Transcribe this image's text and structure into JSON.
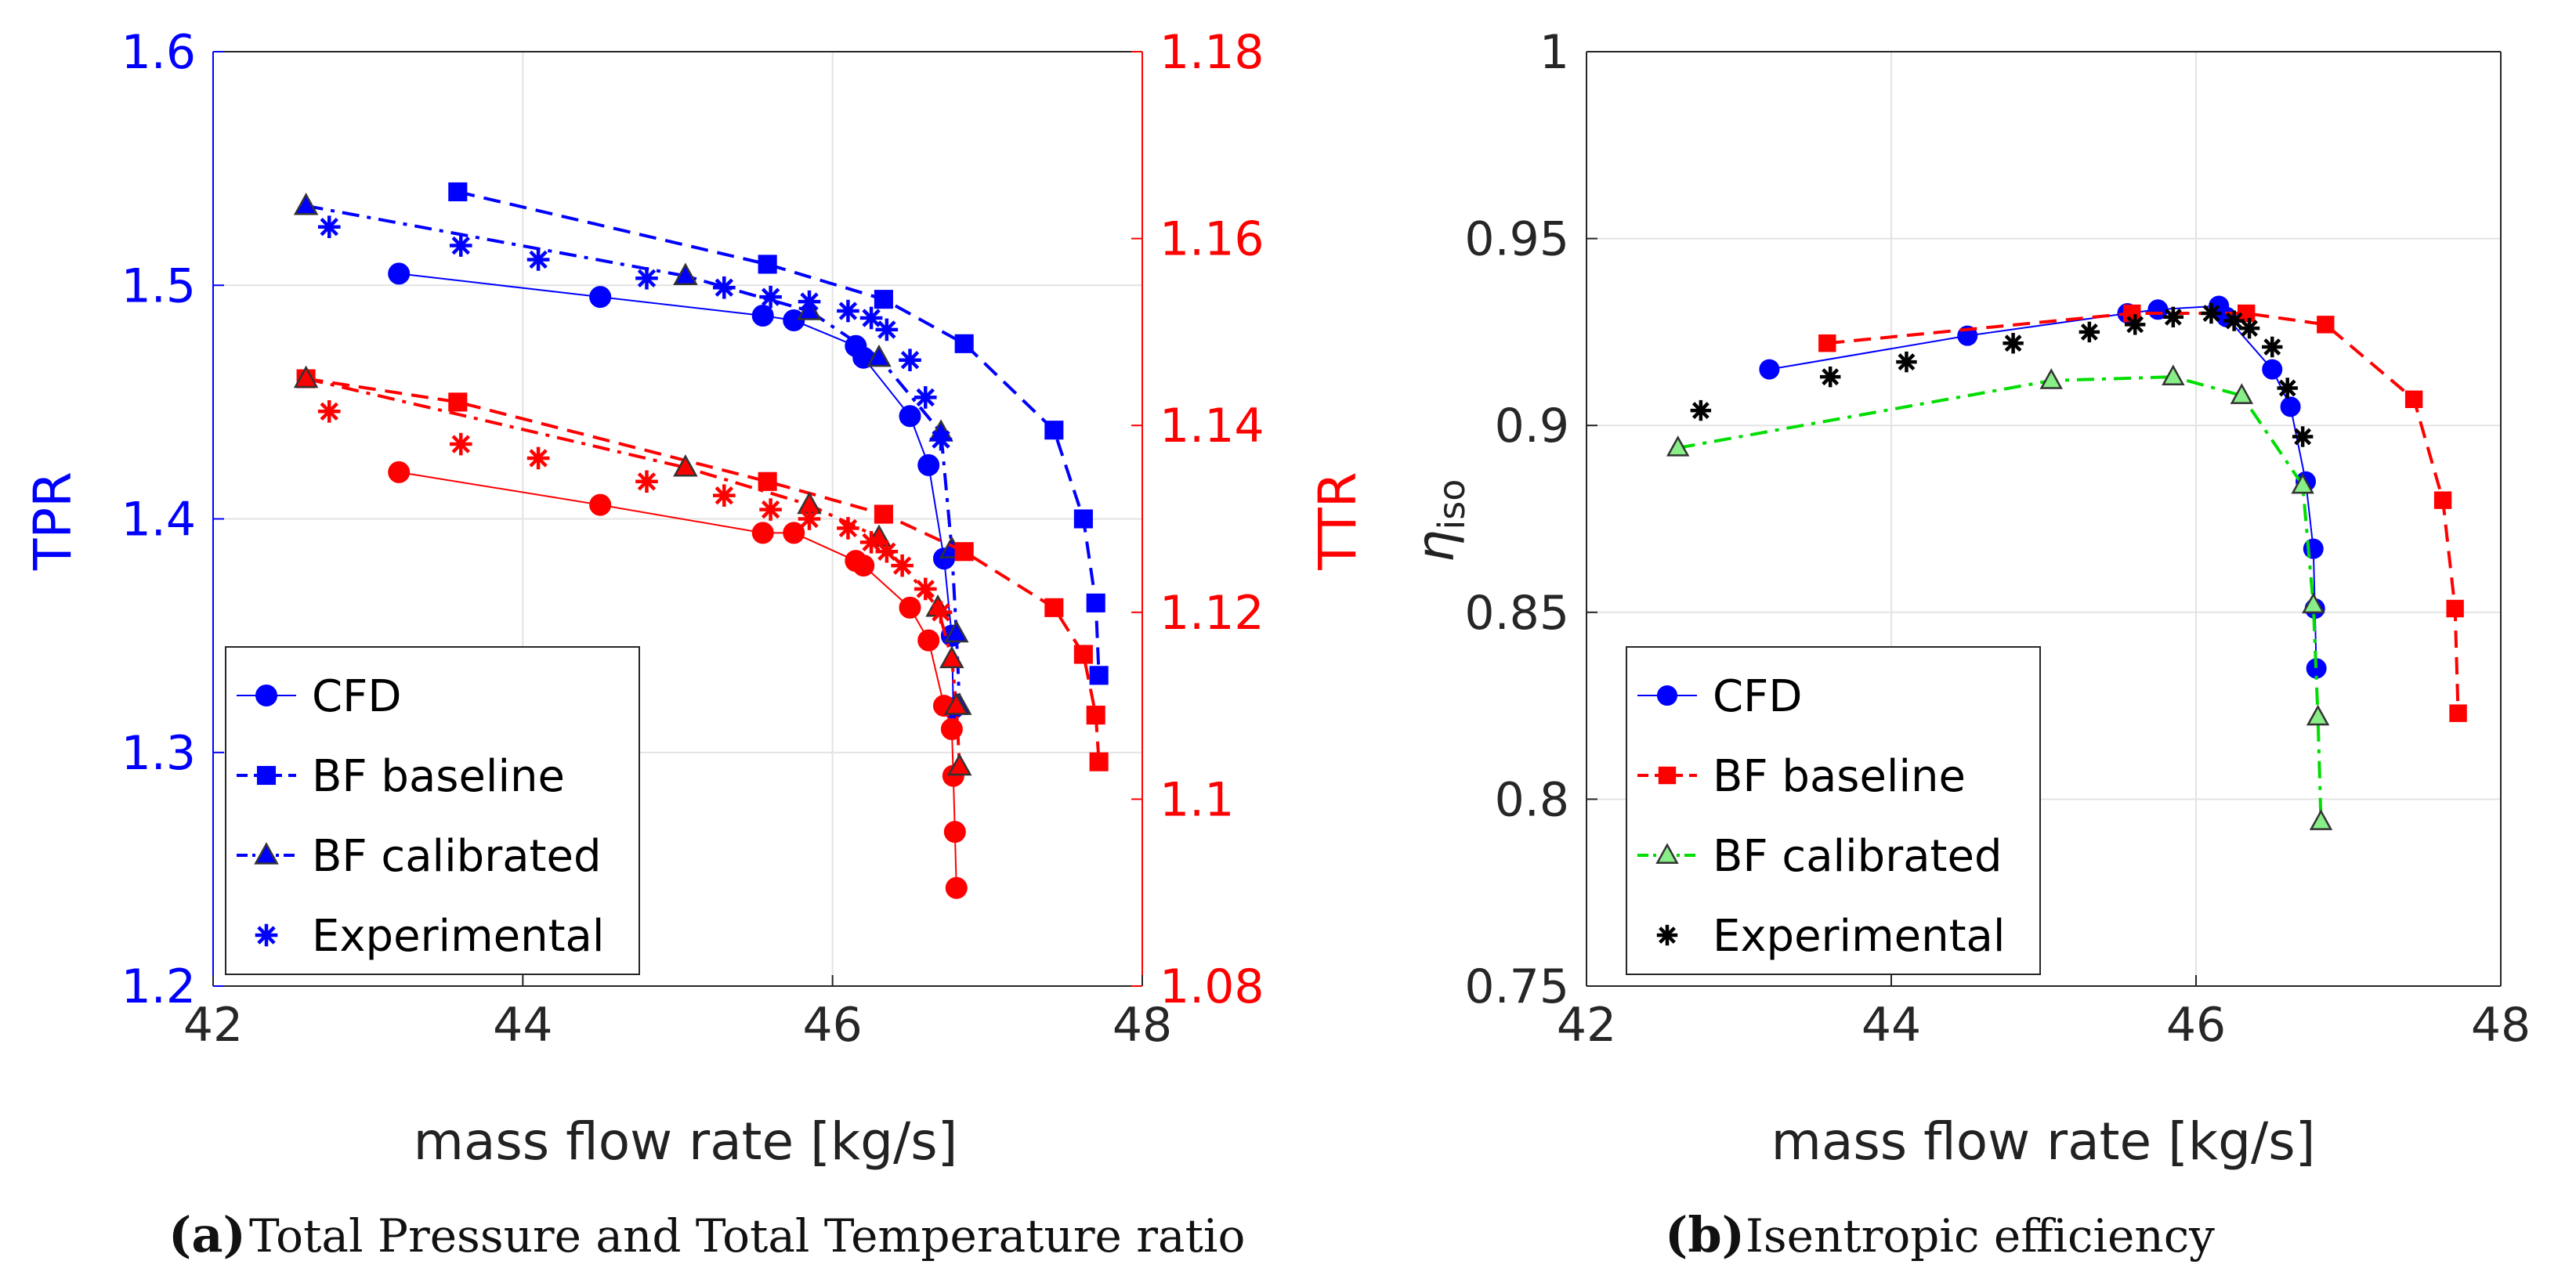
{
  "chart_data": [
    {
      "type": "line",
      "panel": "a",
      "caption_label": "(a)",
      "caption_text": "Total Pressure and Total Temperature ratio",
      "xlabel": "mass flow rate [kg/s]",
      "ylabel_left": "TPR",
      "ylabel_right": "TTR",
      "xlim": [
        42,
        48
      ],
      "ylim_left": [
        1.2,
        1.6
      ],
      "ylim_right": [
        1.08,
        1.18
      ],
      "xticks": [
        "42",
        "44",
        "46",
        "48"
      ],
      "yticks_left": [
        "1.2",
        "1.3",
        "1.4",
        "1.5",
        "1.6"
      ],
      "yticks_right": [
        "1.08",
        "1.1",
        "1.12",
        "1.14",
        "1.16",
        "1.18"
      ],
      "grid": true,
      "colors": {
        "left_axis": "#0000ff",
        "right_axis": "#ff0000",
        "cfd": "#0000ff",
        "baseline": "#0000ff",
        "calibrated": "#0000ff",
        "experimental": "#0000ff",
        "ttr": "#ff0000"
      },
      "legend": {
        "placement": "bottom-left",
        "entries": [
          {
            "label": "CFD",
            "marker": "circle",
            "line": "solid",
            "color": "#0000ff"
          },
          {
            "label": "BF baseline",
            "marker": "square",
            "line": "dashed",
            "color": "#0000ff"
          },
          {
            "label": "BF calibrated",
            "marker": "triangle",
            "line": "dashdot",
            "color": "#0000ff"
          },
          {
            "label": "Experimental",
            "marker": "asterisk",
            "line": "none",
            "color": "#0000ff"
          }
        ]
      },
      "series": [
        {
          "name": "CFD",
          "axis": "left",
          "color": "#0000ff",
          "marker": "circle",
          "line": "solid",
          "x": [
            43.2,
            44.5,
            45.55,
            45.75,
            46.15,
            46.2,
            46.5,
            46.62,
            46.72,
            46.77,
            46.78
          ],
          "values": [
            1.505,
            1.495,
            1.487,
            1.485,
            1.474,
            1.469,
            1.444,
            1.423,
            1.383,
            1.35,
            1.319
          ]
        },
        {
          "name": "BF baseline",
          "axis": "left",
          "color": "#0000ff",
          "marker": "square",
          "line": "dashed",
          "x": [
            43.58,
            45.58,
            46.33,
            46.85,
            47.43,
            47.62,
            47.7,
            47.72
          ],
          "values": [
            1.54,
            1.509,
            1.494,
            1.475,
            1.438,
            1.4,
            1.364,
            1.333
          ]
        },
        {
          "name": "BF calibrated",
          "axis": "left",
          "color": "#0000ff",
          "marker": "triangle",
          "line": "dashdot",
          "x": [
            42.6,
            45.05,
            45.85,
            46.3,
            46.7,
            46.77,
            46.8,
            46.82
          ],
          "values": [
            1.534,
            1.504,
            1.489,
            1.469,
            1.437,
            1.387,
            1.351,
            1.32
          ]
        },
        {
          "name": "Experimental",
          "axis": "left",
          "color": "#0000ff",
          "marker": "asterisk",
          "line": "none",
          "x": [
            42.75,
            43.6,
            44.1,
            44.8,
            45.3,
            45.6,
            45.85,
            46.1,
            46.25,
            46.35,
            46.5,
            46.6,
            46.7
          ],
          "values": [
            1.525,
            1.517,
            1.511,
            1.503,
            1.499,
            1.495,
            1.493,
            1.489,
            1.486,
            1.481,
            1.468,
            1.452,
            1.434
          ]
        },
        {
          "name": "CFD TTR",
          "axis": "right",
          "color": "#ff0000",
          "marker": "circle",
          "line": "solid",
          "x": [
            43.2,
            44.5,
            45.55,
            45.75,
            46.15,
            46.2,
            46.5,
            46.62,
            46.72,
            46.77,
            46.78,
            46.79,
            46.8
          ],
          "values": [
            1.135,
            1.1315,
            1.1285,
            1.1285,
            1.1255,
            1.125,
            1.1205,
            1.117,
            1.11,
            1.1075,
            1.1025,
            1.0965,
            1.0905
          ]
        },
        {
          "name": "BF baseline TTR",
          "axis": "right",
          "color": "#ff0000",
          "marker": "square",
          "line": "dashed",
          "x": [
            42.6,
            43.58,
            45.58,
            46.33,
            46.85,
            47.43,
            47.62,
            47.7,
            47.72
          ],
          "values": [
            1.145,
            1.1425,
            1.134,
            1.1305,
            1.1265,
            1.1205,
            1.1155,
            1.109,
            1.104
          ]
        },
        {
          "name": "BF calibrated TTR",
          "axis": "right",
          "color": "#ff0000",
          "marker": "triangle",
          "line": "dashdot",
          "x": [
            42.6,
            45.05,
            45.85,
            46.3,
            46.68,
            46.77,
            46.8,
            46.82
          ],
          "values": [
            1.145,
            1.1355,
            1.1315,
            1.128,
            1.1205,
            1.115,
            1.11,
            1.1035
          ]
        },
        {
          "name": "Experimental TTR",
          "axis": "right",
          "color": "#ff0000",
          "marker": "asterisk",
          "line": "none",
          "x": [
            42.75,
            43.6,
            44.1,
            44.8,
            45.3,
            45.6,
            45.85,
            46.1,
            46.25,
            46.35,
            46.45,
            46.6,
            46.7
          ],
          "values": [
            1.1415,
            1.138,
            1.1365,
            1.134,
            1.1325,
            1.131,
            1.13,
            1.129,
            1.1275,
            1.1265,
            1.125,
            1.1225,
            1.12
          ]
        }
      ]
    },
    {
      "type": "line",
      "panel": "b",
      "caption_label": "(b)",
      "caption_text": "Isentropic efficiency",
      "xlabel": "mass flow rate [kg/s]",
      "ylabel": "η",
      "ylabel_subscript": "iso",
      "xlim": [
        42,
        48
      ],
      "ylim": [
        0.75,
        1.0
      ],
      "xticks": [
        "42",
        "44",
        "46",
        "48"
      ],
      "yticks": [
        "0.75",
        "0.8",
        "0.85",
        "0.9",
        "0.95",
        "1"
      ],
      "grid": true,
      "colors": {
        "cfd": "#0000ff",
        "baseline": "#ff0000",
        "calibrated": "#00dd00",
        "experimental": "#000000"
      },
      "legend": {
        "placement": "bottom-left",
        "entries": [
          {
            "label": "CFD",
            "marker": "circle",
            "line": "solid",
            "color": "#0000ff"
          },
          {
            "label": "BF baseline",
            "marker": "square",
            "line": "dashed",
            "color": "#ff0000"
          },
          {
            "label": "BF calibrated",
            "marker": "triangle",
            "line": "dashdot",
            "color": "#00dd00"
          },
          {
            "label": "Experimental",
            "marker": "asterisk",
            "line": "none",
            "color": "#000000"
          }
        ]
      },
      "series": [
        {
          "name": "CFD",
          "color": "#0000ff",
          "marker": "circle",
          "line": "solid",
          "x": [
            43.2,
            44.5,
            45.55,
            45.75,
            46.15,
            46.2,
            46.5,
            46.62,
            46.72,
            46.77,
            46.78,
            46.79
          ],
          "values": [
            0.915,
            0.924,
            0.93,
            0.931,
            0.932,
            0.929,
            0.915,
            0.905,
            0.885,
            0.867,
            0.851,
            0.835
          ]
        },
        {
          "name": "BF baseline",
          "color": "#ff0000",
          "marker": "square",
          "line": "dashed",
          "x": [
            43.58,
            45.58,
            46.33,
            46.85,
            47.43,
            47.62,
            47.7,
            47.72
          ],
          "values": [
            0.922,
            0.93,
            0.93,
            0.927,
            0.907,
            0.88,
            0.851,
            0.823
          ]
        },
        {
          "name": "BF calibrated",
          "color": "#00dd00",
          "marker": "triangle",
          "line": "dashdot",
          "x": [
            42.6,
            45.05,
            45.85,
            46.3,
            46.7,
            46.77,
            46.8,
            46.82
          ],
          "values": [
            0.894,
            0.912,
            0.913,
            0.908,
            0.884,
            0.852,
            0.822,
            0.794
          ]
        },
        {
          "name": "Experimental",
          "color": "#000000",
          "marker": "asterisk",
          "line": "none",
          "x": [
            42.75,
            43.6,
            44.1,
            44.8,
            45.3,
            45.6,
            45.85,
            46.1,
            46.25,
            46.35,
            46.5,
            46.6,
            46.7
          ],
          "values": [
            0.904,
            0.913,
            0.917,
            0.922,
            0.925,
            0.927,
            0.929,
            0.93,
            0.928,
            0.926,
            0.921,
            0.91,
            0.897
          ]
        }
      ]
    }
  ]
}
